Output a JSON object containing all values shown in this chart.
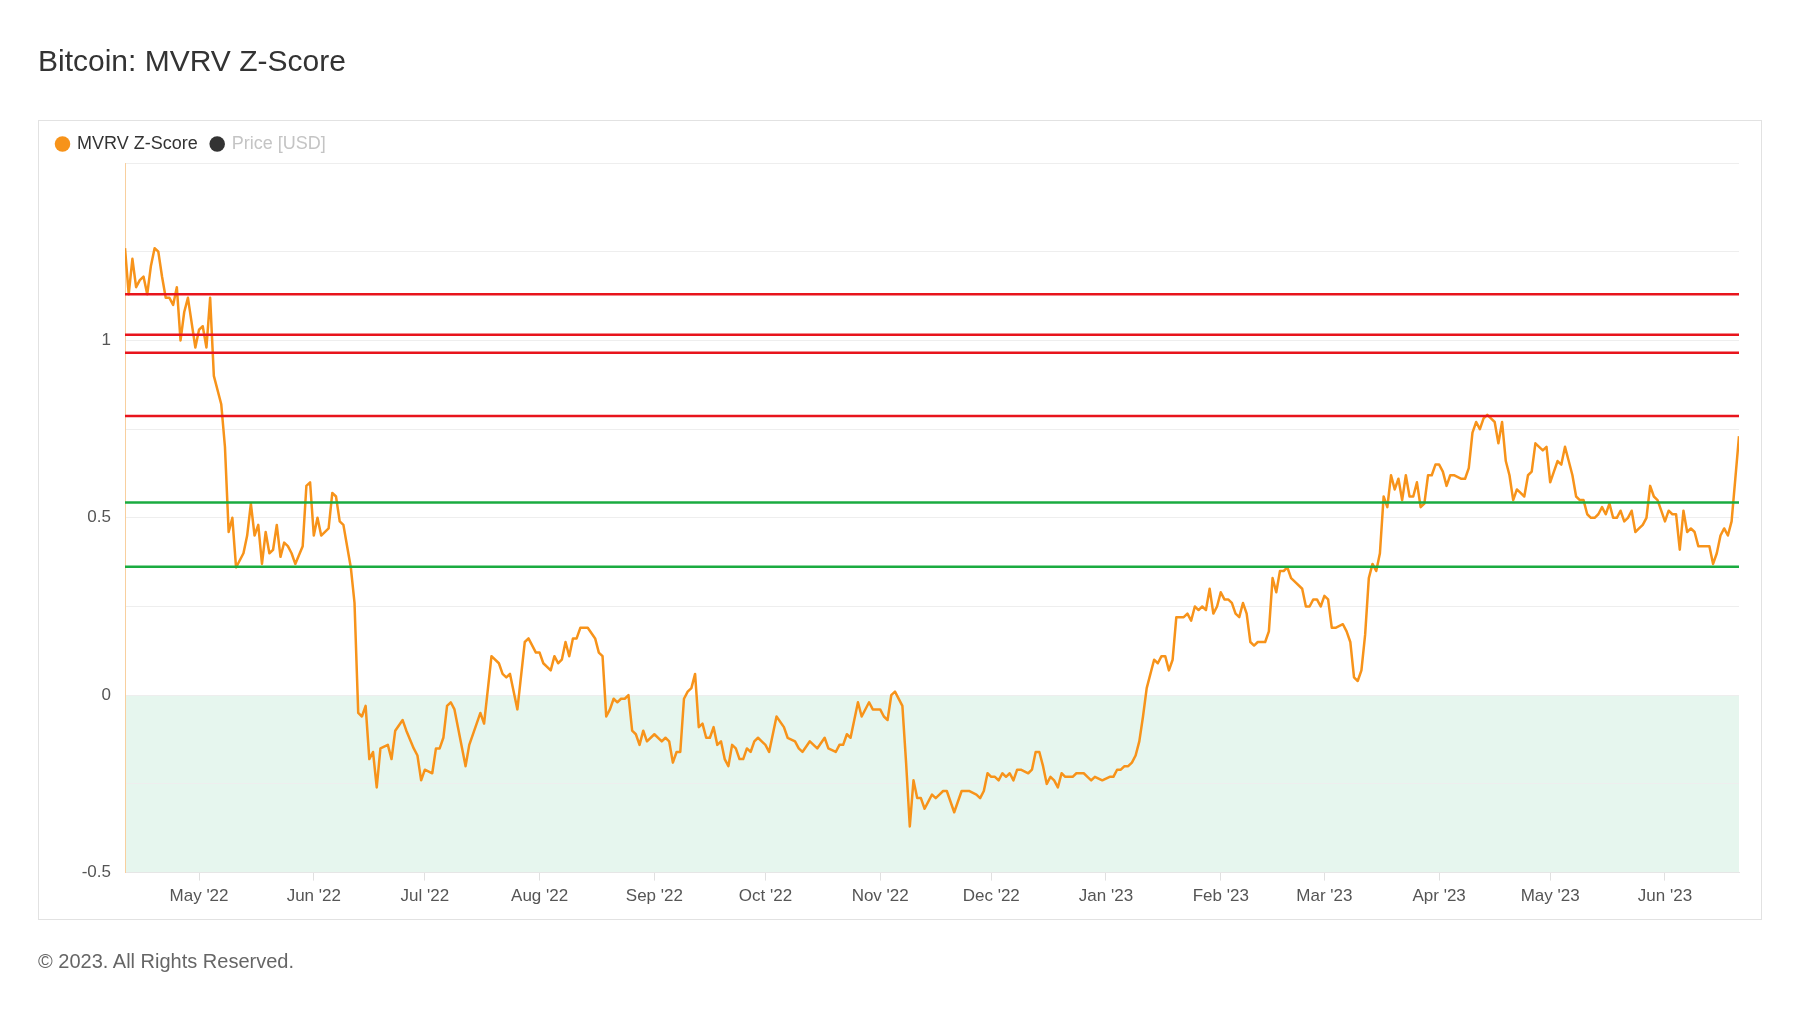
{
  "chart_data": {
    "type": "line",
    "title": "Bitcoin: MVRV Z-Score",
    "annotations": [
      "© 2023. All Rights Reserved."
    ],
    "x": [
      "2022-04-11",
      "2022-04-12",
      "2022-04-13",
      "2022-04-14",
      "2022-04-15",
      "2022-04-16",
      "2022-04-17",
      "2022-04-18",
      "2022-04-19",
      "2022-04-20",
      "2022-04-21",
      "2022-04-22",
      "2022-04-23",
      "2022-04-24",
      "2022-04-25",
      "2022-04-26",
      "2022-04-27",
      "2022-04-28",
      "2022-04-30",
      "2022-05-01",
      "2022-05-02",
      "2022-05-03",
      "2022-05-04",
      "2022-05-05",
      "2022-05-07",
      "2022-05-08",
      "2022-05-09",
      "2022-05-10",
      "2022-05-11",
      "2022-05-13",
      "2022-05-14",
      "2022-05-15",
      "2022-05-16",
      "2022-05-17",
      "2022-05-18",
      "2022-05-19",
      "2022-05-20",
      "2022-05-21",
      "2022-05-22",
      "2022-05-23",
      "2022-05-24",
      "2022-05-25",
      "2022-05-26",
      "2022-05-27",
      "2022-05-29",
      "2022-05-30",
      "2022-05-31",
      "2022-06-01",
      "2022-06-02",
      "2022-06-03",
      "2022-06-05",
      "2022-06-06",
      "2022-06-07",
      "2022-06-08",
      "2022-06-09",
      "2022-06-10",
      "2022-06-11",
      "2022-06-12",
      "2022-06-13",
      "2022-06-14",
      "2022-06-15",
      "2022-06-16",
      "2022-06-17",
      "2022-06-18",
      "2022-06-19",
      "2022-06-21",
      "2022-06-22",
      "2022-06-23",
      "2022-06-25",
      "2022-06-26",
      "2022-06-28",
      "2022-06-29",
      "2022-06-30",
      "2022-07-01",
      "2022-07-03",
      "2022-07-04",
      "2022-07-05",
      "2022-07-06",
      "2022-07-07",
      "2022-07-08",
      "2022-07-09",
      "2022-07-12",
      "2022-07-13",
      "2022-07-16",
      "2022-07-17",
      "2022-07-19",
      "2022-07-21",
      "2022-07-22",
      "2022-07-23",
      "2022-07-24",
      "2022-07-26",
      "2022-07-28",
      "2022-07-29",
      "2022-07-31",
      "2022-08-01",
      "2022-08-02",
      "2022-08-04",
      "2022-08-05",
      "2022-08-06",
      "2022-08-07",
      "2022-08-08",
      "2022-08-09",
      "2022-08-10",
      "2022-08-11",
      "2022-08-12",
      "2022-08-13",
      "2022-08-14",
      "2022-08-16",
      "2022-08-17",
      "2022-08-18",
      "2022-08-19",
      "2022-08-20",
      "2022-08-21",
      "2022-08-22",
      "2022-08-23",
      "2022-08-24",
      "2022-08-25",
      "2022-08-26",
      "2022-08-27",
      "2022-08-28",
      "2022-08-29",
      "2022-08-30",
      "2022-09-01",
      "2022-09-03",
      "2022-09-04",
      "2022-09-05",
      "2022-09-06",
      "2022-09-07",
      "2022-09-08",
      "2022-09-09",
      "2022-09-10",
      "2022-09-11",
      "2022-09-12",
      "2022-09-13",
      "2022-09-14",
      "2022-09-15",
      "2022-09-16",
      "2022-09-17",
      "2022-09-18",
      "2022-09-19",
      "2022-09-20",
      "2022-09-21",
      "2022-09-22",
      "2022-09-23",
      "2022-09-24",
      "2022-09-25",
      "2022-09-26",
      "2022-09-27",
      "2022-09-28",
      "2022-09-29",
      "2022-09-30",
      "2022-10-01",
      "2022-10-02",
      "2022-10-04",
      "2022-10-06",
      "2022-10-07",
      "2022-10-09",
      "2022-10-10",
      "2022-10-11",
      "2022-10-13",
      "2022-10-15",
      "2022-10-17",
      "2022-10-18",
      "2022-10-20",
      "2022-10-21",
      "2022-10-22",
      "2022-10-23",
      "2022-10-24",
      "2022-10-26",
      "2022-10-27",
      "2022-10-29",
      "2022-10-30",
      "2022-11-01",
      "2022-11-02",
      "2022-11-03",
      "2022-11-04",
      "2022-11-05",
      "2022-11-07",
      "2022-11-08",
      "2022-11-09",
      "2022-11-10",
      "2022-11-11",
      "2022-11-12",
      "2022-11-13",
      "2022-11-14",
      "2022-11-15",
      "2022-11-16",
      "2022-11-17",
      "2022-11-18",
      "2022-11-19",
      "2022-11-21",
      "2022-11-23",
      "2022-11-25",
      "2022-11-27",
      "2022-11-28",
      "2022-11-29",
      "2022-11-30",
      "2022-12-01",
      "2022-12-02",
      "2022-12-03",
      "2022-12-04",
      "2022-12-05",
      "2022-12-06",
      "2022-12-07",
      "2022-12-08",
      "2022-12-09",
      "2022-12-11",
      "2022-12-12",
      "2022-12-13",
      "2022-12-14",
      "2022-12-15",
      "2022-12-16",
      "2022-12-17",
      "2022-12-18",
      "2022-12-19",
      "2022-12-20",
      "2022-12-21",
      "2022-12-23",
      "2022-12-24",
      "2022-12-26",
      "2022-12-27",
      "2022-12-28",
      "2022-12-29",
      "2022-12-31",
      "2023-01-02",
      "2023-01-03",
      "2023-01-04",
      "2023-01-05",
      "2023-01-06",
      "2023-01-07",
      "2023-01-08",
      "2023-01-09",
      "2023-01-10",
      "2023-01-11",
      "2023-01-12",
      "2023-01-14",
      "2023-01-15",
      "2023-01-16",
      "2023-01-17",
      "2023-01-18",
      "2023-01-19",
      "2023-01-20",
      "2023-01-21",
      "2023-01-22",
      "2023-01-23",
      "2023-01-24",
      "2023-01-25",
      "2023-01-26",
      "2023-01-27",
      "2023-01-28",
      "2023-01-29",
      "2023-01-30",
      "2023-01-31",
      "2023-02-01",
      "2023-02-02",
      "2023-02-03",
      "2023-02-04",
      "2023-02-05",
      "2023-02-06",
      "2023-02-07",
      "2023-02-08",
      "2023-02-09",
      "2023-02-10",
      "2023-02-11",
      "2023-02-13",
      "2023-02-14",
      "2023-02-15",
      "2023-02-16",
      "2023-02-17",
      "2023-02-18",
      "2023-02-19",
      "2023-02-20",
      "2023-02-21",
      "2023-02-23",
      "2023-02-24",
      "2023-02-25",
      "2023-02-26",
      "2023-02-27",
      "2023-02-28",
      "2023-03-01",
      "2023-03-02",
      "2023-03-03",
      "2023-03-04",
      "2023-03-06",
      "2023-03-07",
      "2023-03-08",
      "2023-03-09",
      "2023-03-10",
      "2023-03-11",
      "2023-03-12",
      "2023-03-13",
      "2023-03-14",
      "2023-03-15",
      "2023-03-16",
      "2023-03-17",
      "2023-03-18",
      "2023-03-19",
      "2023-03-20",
      "2023-03-21",
      "2023-03-22",
      "2023-03-23",
      "2023-03-24",
      "2023-03-25",
      "2023-03-26",
      "2023-03-27",
      "2023-03-28",
      "2023-03-29",
      "2023-03-30",
      "2023-03-31",
      "2023-04-01",
      "2023-04-02",
      "2023-04-03",
      "2023-04-04",
      "2023-04-05",
      "2023-04-07",
      "2023-04-08",
      "2023-04-09",
      "2023-04-10",
      "2023-04-11",
      "2023-04-12",
      "2023-04-13",
      "2023-04-14",
      "2023-04-15",
      "2023-04-16",
      "2023-04-17",
      "2023-04-18",
      "2023-04-19",
      "2023-04-20",
      "2023-04-21",
      "2023-04-22",
      "2023-04-23",
      "2023-04-24",
      "2023-04-25",
      "2023-04-26",
      "2023-04-27",
      "2023-04-28",
      "2023-04-29",
      "2023-04-30",
      "2023-05-01",
      "2023-05-02",
      "2023-05-03",
      "2023-05-04",
      "2023-05-05",
      "2023-05-06",
      "2023-05-07",
      "2023-05-08",
      "2023-05-09",
      "2023-05-10",
      "2023-05-11",
      "2023-05-12",
      "2023-05-13",
      "2023-05-14",
      "2023-05-15",
      "2023-05-16",
      "2023-05-17",
      "2023-05-18",
      "2023-05-19",
      "2023-05-20",
      "2023-05-21",
      "2023-05-22",
      "2023-05-23",
      "2023-05-24",
      "2023-05-25",
      "2023-05-26",
      "2023-05-27",
      "2023-05-28",
      "2023-05-29",
      "2023-05-30",
      "2023-05-31",
      "2023-06-01",
      "2023-06-02",
      "2023-06-03",
      "2023-06-04",
      "2023-06-05",
      "2023-06-06",
      "2023-06-07",
      "2023-06-08",
      "2023-06-09",
      "2023-06-10",
      "2023-06-11",
      "2023-06-12",
      "2023-06-13",
      "2023-06-14",
      "2023-06-15",
      "2023-06-16",
      "2023-06-17",
      "2023-06-18",
      "2023-06-19",
      "2023-06-20",
      "2023-06-21"
    ],
    "series": [
      {
        "name": "MVRV Z-Score",
        "color": "#f7931a",
        "values": [
          1.26,
          1.13,
          1.23,
          1.15,
          1.17,
          1.18,
          1.13,
          1.21,
          1.26,
          1.25,
          1.18,
          1.12,
          1.12,
          1.1,
          1.15,
          1.0,
          1.08,
          1.12,
          0.98,
          1.03,
          1.04,
          0.98,
          1.12,
          0.9,
          0.82,
          0.7,
          0.46,
          0.5,
          0.36,
          0.4,
          0.45,
          0.54,
          0.45,
          0.48,
          0.37,
          0.46,
          0.4,
          0.41,
          0.48,
          0.39,
          0.43,
          0.42,
          0.4,
          0.37,
          0.42,
          0.59,
          0.6,
          0.45,
          0.5,
          0.45,
          0.47,
          0.57,
          0.56,
          0.49,
          0.48,
          0.42,
          0.36,
          0.26,
          -0.05,
          -0.06,
          -0.03,
          -0.18,
          -0.16,
          -0.26,
          -0.15,
          -0.14,
          -0.18,
          -0.1,
          -0.07,
          -0.1,
          -0.15,
          -0.17,
          -0.24,
          -0.21,
          -0.22,
          -0.15,
          -0.15,
          -0.12,
          -0.03,
          -0.02,
          -0.04,
          -0.2,
          -0.14,
          -0.05,
          -0.08,
          0.11,
          0.09,
          0.06,
          0.05,
          0.06,
          -0.04,
          0.15,
          0.16,
          0.12,
          0.12,
          0.09,
          0.07,
          0.11,
          0.09,
          0.1,
          0.15,
          0.11,
          0.16,
          0.16,
          0.19,
          0.19,
          0.19,
          0.16,
          0.12,
          0.11,
          -0.06,
          -0.04,
          -0.01,
          -0.02,
          -0.01,
          -0.01,
          0.0,
          -0.1,
          -0.11,
          -0.14,
          -0.1,
          -0.13,
          -0.11,
          -0.13,
          -0.12,
          -0.13,
          -0.19,
          -0.16,
          -0.16,
          -0.01,
          0.01,
          0.02,
          0.06,
          -0.09,
          -0.08,
          -0.12,
          -0.12,
          -0.09,
          -0.14,
          -0.13,
          -0.18,
          -0.2,
          -0.14,
          -0.15,
          -0.18,
          -0.18,
          -0.15,
          -0.16,
          -0.13,
          -0.12,
          -0.13,
          -0.14,
          -0.16,
          -0.06,
          -0.09,
          -0.12,
          -0.13,
          -0.15,
          -0.16,
          -0.13,
          -0.15,
          -0.12,
          -0.15,
          -0.16,
          -0.14,
          -0.14,
          -0.11,
          -0.12,
          -0.02,
          -0.06,
          -0.02,
          -0.04,
          -0.04,
          -0.06,
          -0.07,
          0.0,
          0.01,
          -0.03,
          -0.19,
          -0.37,
          -0.24,
          -0.29,
          -0.29,
          -0.32,
          -0.3,
          -0.28,
          -0.29,
          -0.28,
          -0.27,
          -0.27,
          -0.33,
          -0.27,
          -0.27,
          -0.28,
          -0.29,
          -0.27,
          -0.22,
          -0.23,
          -0.23,
          -0.24,
          -0.22,
          -0.23,
          -0.22,
          -0.24,
          -0.21,
          -0.21,
          -0.22,
          -0.21,
          -0.16,
          -0.16,
          -0.2,
          -0.25,
          -0.23,
          -0.24,
          -0.26,
          -0.22,
          -0.23,
          -0.23,
          -0.22,
          -0.22,
          -0.23,
          -0.24,
          -0.23,
          -0.24,
          -0.23,
          -0.23,
          -0.21,
          -0.21,
          -0.2,
          -0.2,
          -0.19,
          -0.17,
          -0.13,
          -0.06,
          0.02,
          0.1,
          0.09,
          0.11,
          0.11,
          0.07,
          0.1,
          0.22,
          0.22,
          0.22,
          0.23,
          0.21,
          0.25,
          0.24,
          0.25,
          0.24,
          0.3,
          0.23,
          0.25,
          0.29,
          0.27,
          0.27,
          0.26,
          0.23,
          0.22,
          0.26,
          0.23,
          0.15,
          0.14,
          0.15,
          0.15,
          0.18,
          0.33,
          0.29,
          0.35,
          0.35,
          0.36,
          0.33,
          0.32,
          0.3,
          0.25,
          0.25,
          0.27,
          0.27,
          0.25,
          0.28,
          0.27,
          0.19,
          0.19,
          0.2,
          0.18,
          0.15,
          0.05,
          0.04,
          0.07,
          0.17,
          0.33,
          0.37,
          0.35,
          0.4,
          0.56,
          0.53,
          0.62,
          0.58,
          0.61,
          0.55,
          0.62,
          0.56,
          0.56,
          0.6,
          0.53,
          0.54,
          0.62,
          0.62,
          0.65,
          0.65,
          0.63,
          0.59,
          0.62,
          0.62,
          0.61,
          0.61,
          0.64,
          0.74,
          0.77,
          0.75,
          0.78,
          0.79,
          0.78,
          0.77,
          0.71,
          0.77,
          0.66,
          0.62,
          0.55,
          0.58,
          0.57,
          0.56,
          0.62,
          0.63,
          0.71,
          0.7,
          0.69,
          0.7,
          0.6,
          0.63,
          0.66,
          0.65,
          0.7,
          0.66,
          0.62,
          0.56,
          0.55,
          0.55,
          0.51,
          0.5,
          0.5,
          0.51,
          0.53,
          0.51,
          0.54,
          0.5,
          0.5,
          0.52,
          0.49,
          0.5,
          0.52,
          0.46,
          0.47,
          0.48,
          0.5,
          0.59,
          0.56,
          0.55,
          0.52,
          0.49,
          0.52,
          0.51,
          0.51,
          0.41,
          0.52,
          0.46,
          0.47,
          0.46,
          0.42,
          0.42,
          0.42,
          0.42,
          0.37,
          0.4,
          0.45,
          0.47,
          0.45,
          0.49,
          0.61,
          0.73
        ]
      },
      {
        "name": "Price [USD]",
        "color": "#333333",
        "values": [
          null,
          null,
          null,
          null,
          null,
          null,
          null,
          null,
          null,
          null,
          null,
          null,
          null,
          null,
          null,
          null,
          null,
          null,
          null,
          null,
          null,
          null,
          null,
          null,
          null,
          null,
          null,
          null,
          null,
          null,
          null,
          null,
          null,
          null,
          null,
          null,
          null,
          null,
          null,
          null,
          null,
          null,
          null,
          null,
          null,
          null,
          null,
          null,
          null,
          null,
          null,
          null,
          null,
          null,
          null,
          null,
          null,
          null,
          null,
          null,
          null,
          null,
          null,
          null,
          null,
          null,
          null,
          null,
          null,
          null,
          null,
          null,
          null,
          null,
          null,
          null,
          null,
          null,
          null,
          null,
          null,
          null,
          null,
          null,
          null,
          null,
          null,
          null,
          null,
          null,
          null,
          null,
          null,
          null,
          null,
          null,
          null,
          null,
          null,
          null,
          null,
          null,
          null,
          null,
          null,
          null,
          null,
          null,
          null,
          null,
          null,
          null,
          null,
          null,
          null,
          null,
          null,
          null,
          null,
          null,
          null,
          null,
          null,
          null,
          null,
          null,
          null,
          null,
          null,
          null,
          null,
          null,
          null,
          null,
          null,
          null,
          null,
          null,
          null,
          null,
          null,
          null,
          null,
          null,
          null,
          null,
          null,
          null,
          null,
          null,
          null,
          null,
          null,
          null,
          null,
          null,
          null,
          null,
          null,
          null,
          null,
          null,
          null,
          null,
          null,
          null,
          null,
          null,
          null,
          null,
          null,
          null,
          null,
          null,
          null,
          null,
          null,
          null,
          null,
          null,
          null,
          null,
          null,
          null,
          null,
          null,
          null,
          null,
          null,
          null,
          null,
          null,
          null,
          null,
          null,
          null,
          null,
          null,
          null,
          null,
          null,
          null,
          null,
          null,
          null,
          null,
          null,
          null,
          null,
          null,
          null,
          null,
          null,
          null,
          null,
          null,
          null,
          null,
          null,
          null,
          null,
          null,
          null,
          null,
          null,
          null,
          null,
          null,
          null,
          null,
          null,
          null,
          null,
          null,
          null,
          null,
          null,
          null,
          null,
          null,
          null,
          null,
          null,
          null,
          null,
          null,
          null,
          null,
          null,
          null,
          null,
          null,
          null,
          null,
          null,
          null,
          null,
          null,
          null,
          null,
          null,
          null,
          null,
          null,
          null,
          null,
          null,
          null,
          null,
          null,
          null,
          null,
          null,
          null,
          null,
          null,
          null,
          null,
          null,
          null,
          null,
          null,
          null,
          null,
          null,
          null,
          null,
          null,
          null,
          null,
          null,
          null,
          null,
          null,
          null,
          null,
          null,
          null,
          null,
          null,
          null,
          null,
          null,
          null,
          null,
          null,
          null,
          null,
          null,
          null,
          null,
          null,
          null,
          null,
          null,
          null,
          null,
          null,
          null,
          null,
          null,
          null,
          null,
          null,
          null,
          null,
          null,
          null,
          null,
          null,
          null,
          null,
          null,
          null,
          null,
          null,
          null,
          null,
          null,
          null,
          null,
          null,
          null,
          null,
          null,
          null,
          null,
          null,
          null,
          null,
          null,
          null,
          null,
          null,
          null,
          null,
          null,
          null,
          null,
          null,
          null,
          null,
          null,
          null,
          null,
          null,
          null,
          null,
          null,
          null,
          null,
          null,
          null,
          null,
          null,
          null,
          null,
          null,
          null,
          null,
          null,
          null,
          null,
          null,
          null,
          null,
          null,
          null,
          null,
          null
        ]
      }
    ],
    "xlim": [
      "2022-04-11",
      "2023-06-21"
    ],
    "xticks": [
      {
        "value": "2022-05-01",
        "label": "May '22"
      },
      {
        "value": "2022-06-01",
        "label": "Jun '22"
      },
      {
        "value": "2022-07-01",
        "label": "Jul '22"
      },
      {
        "value": "2022-08-01",
        "label": "Aug '22"
      },
      {
        "value": "2022-09-01",
        "label": "Sep '22"
      },
      {
        "value": "2022-10-01",
        "label": "Oct '22"
      },
      {
        "value": "2022-11-01",
        "label": "Nov '22"
      },
      {
        "value": "2022-12-01",
        "label": "Dec '22"
      },
      {
        "value": "2023-01-01",
        "label": "Jan '23"
      },
      {
        "value": "2023-02-01",
        "label": "Feb '23"
      },
      {
        "value": "2023-03-01",
        "label": "Mar '23"
      },
      {
        "value": "2023-04-01",
        "label": "Apr '23"
      },
      {
        "value": "2023-05-01",
        "label": "May '23"
      },
      {
        "value": "2023-06-01",
        "label": "Jun '23"
      }
    ],
    "ylim": [
      -0.5,
      1.5
    ],
    "yticks": [
      -0.5,
      {
        "value": -0.25,
        "label": null
      },
      0,
      {
        "value": 0.25,
        "label": null
      },
      0.5,
      {
        "value": 0.75,
        "label": null
      },
      1,
      {
        "value": 1.25,
        "label": null
      },
      {
        "value": 1.5,
        "label": null
      }
    ],
    "ref_lines": [
      {
        "axis": "y",
        "value": 1.13,
        "color": "#e8141c"
      },
      {
        "axis": "y",
        "value": 1.016,
        "color": "#e8141c"
      },
      {
        "axis": "y",
        "value": 0.965,
        "color": "#e8141c"
      },
      {
        "axis": "y",
        "value": 0.787,
        "color": "#e8141c"
      },
      {
        "axis": "y",
        "value": 0.543,
        "color": "#1aab40"
      },
      {
        "axis": "y",
        "value": 0.362,
        "color": "#1aab40"
      }
    ],
    "bands": [
      {
        "axis": "y",
        "from": -0.5,
        "to": 0,
        "color": "#e6f6ee"
      }
    ],
    "grid": "y",
    "legend": "top left",
    "marker": "none",
    "line_style": "solid"
  }
}
